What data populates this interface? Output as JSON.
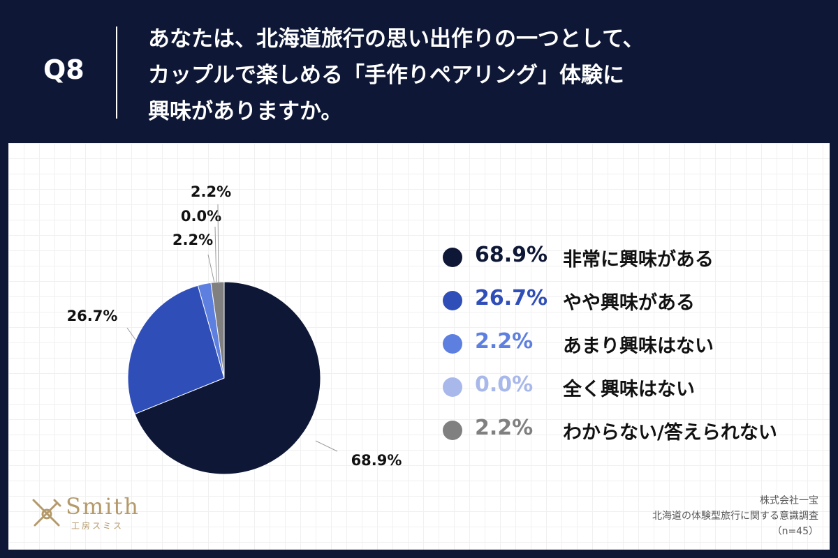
{
  "question": {
    "number": "Q8",
    "lines": [
      "あなたは、北海道旅行の思い出作りの一つとして、",
      "カップルで楽しめる「手作りペアリング」体験に",
      "興味がありますか。"
    ]
  },
  "chart_data": {
    "type": "pie",
    "start_angle_deg": 0,
    "direction": "clockwise",
    "slices": [
      {
        "label": "非常に興味がある",
        "value": 68.9,
        "display": "68.9%",
        "color": "#0e1836",
        "legend_text_color": "#0e1836"
      },
      {
        "label": "やや興味がある",
        "value": 26.7,
        "display": "26.7%",
        "color": "#2f4eb8",
        "legend_text_color": "#2f4eb8"
      },
      {
        "label": "あまり興味はない",
        "value": 2.2,
        "display": "2.2%",
        "color": "#5d7fe0",
        "legend_text_color": "#5d7fe0"
      },
      {
        "label": "全く興味はない",
        "value": 0.0,
        "display": "0.0%",
        "color": "#a8b8ea",
        "legend_text_color": "#a8b8ea"
      },
      {
        "label": "わからない/答えられない",
        "value": 2.2,
        "display": "2.2%",
        "color": "#808080",
        "legend_text_color": "#808080"
      }
    ]
  },
  "logo": {
    "word": "Smith",
    "sub": "工房スミス"
  },
  "source": {
    "company": "株式会社一宝",
    "survey": "北海道の体験型旅行に関する意識調査",
    "sample": "（n=45）"
  }
}
